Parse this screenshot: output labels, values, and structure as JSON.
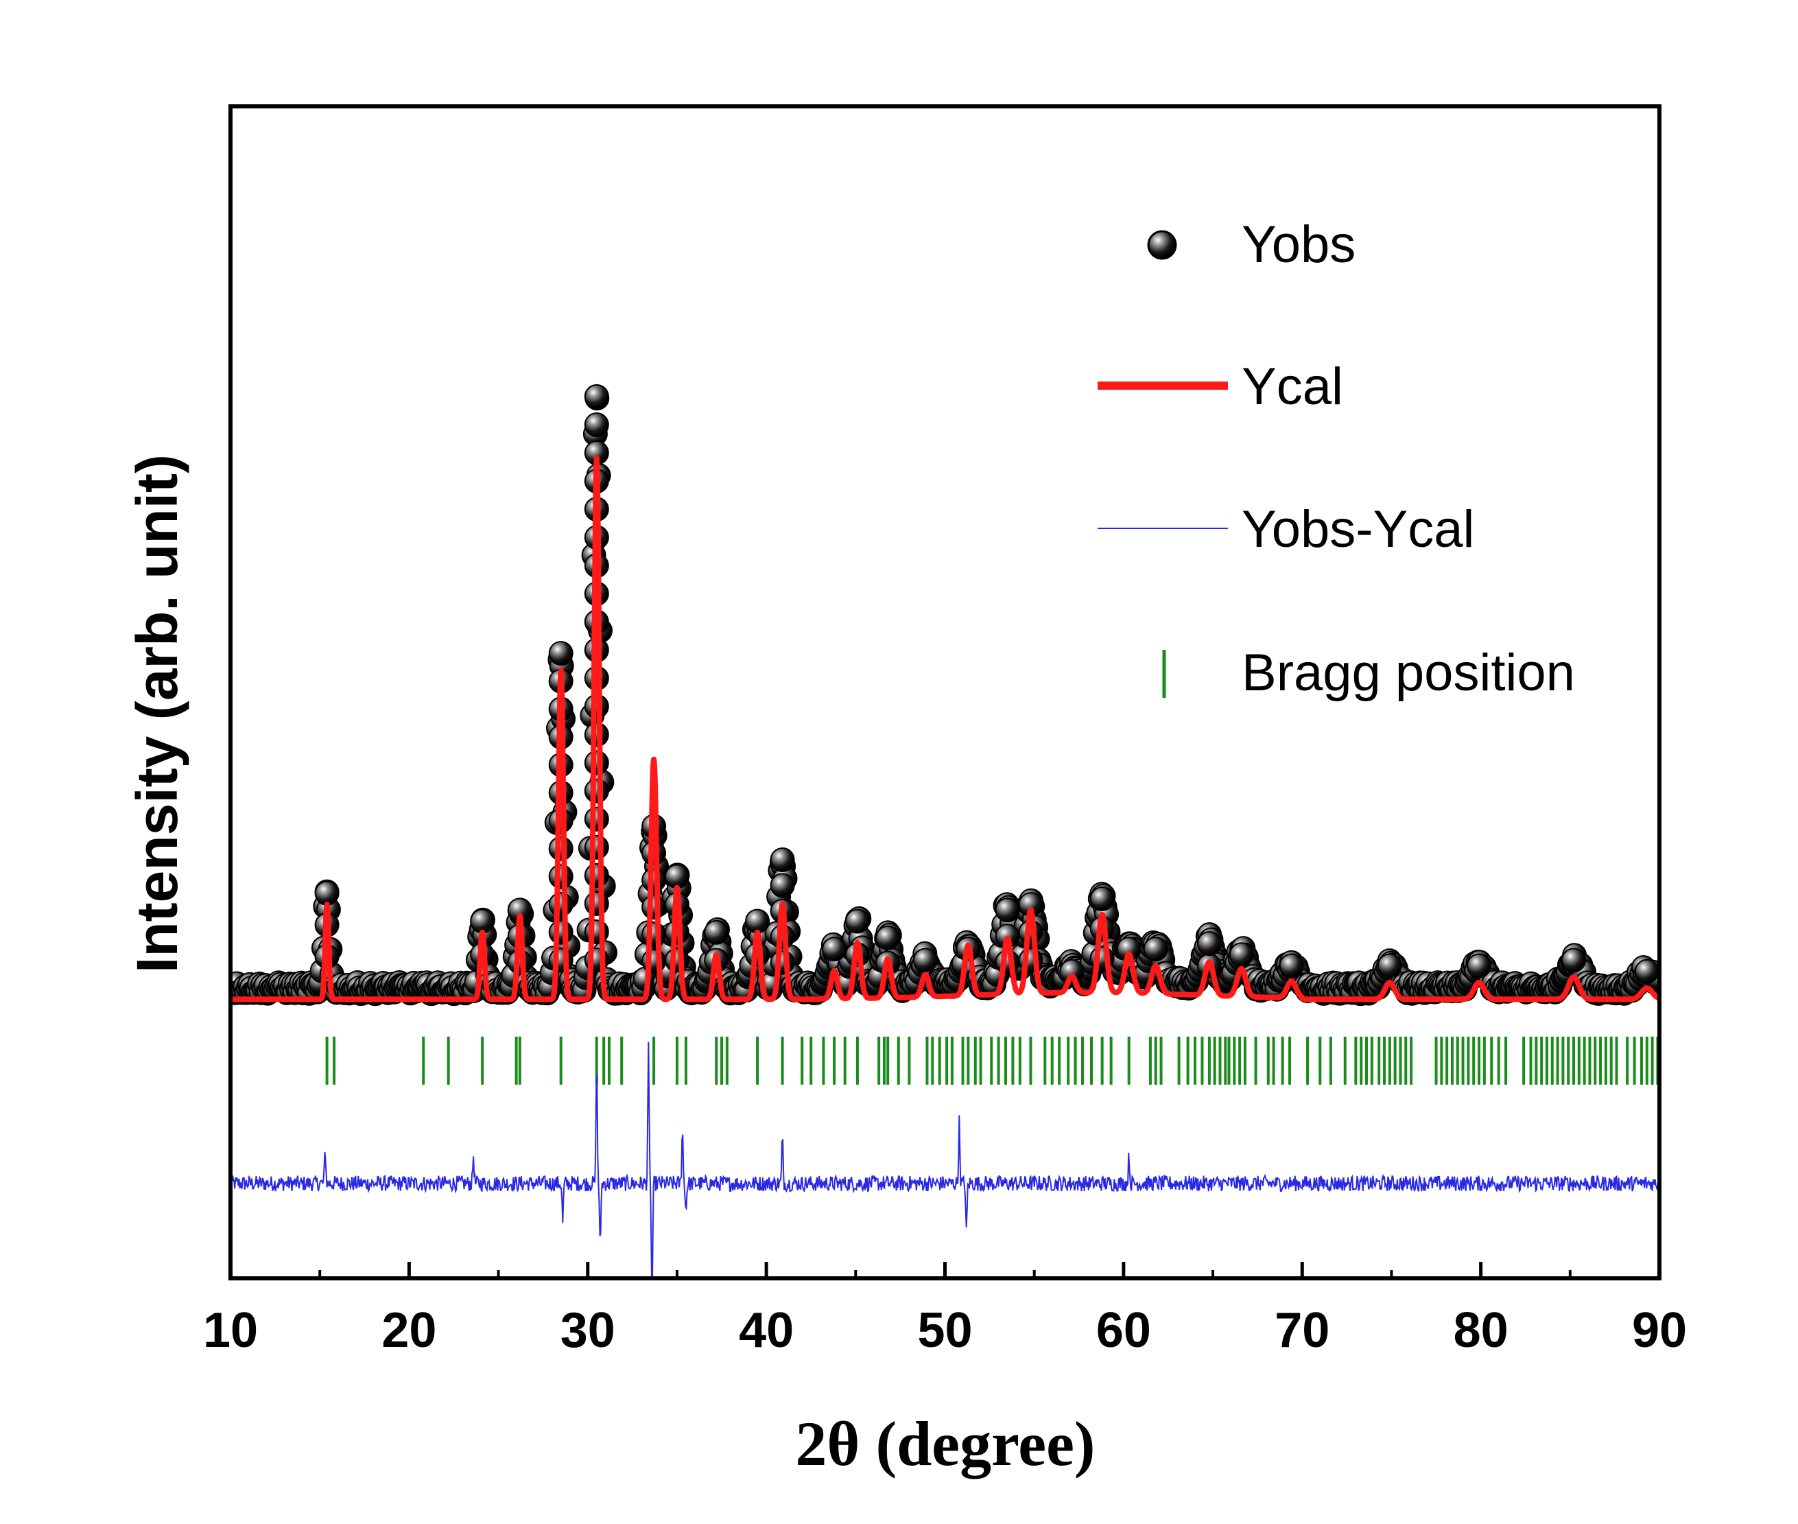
{
  "chart_data": {
    "type": "scatter",
    "title": "",
    "xlabel": "2θ (degree)",
    "ylabel": "Intensity (arb. unit)",
    "xlim": [
      10,
      90
    ],
    "ylim": [
      -0.5,
      1.6
    ],
    "xticks": [
      10,
      20,
      30,
      40,
      50,
      60,
      70,
      80,
      90
    ],
    "xtick_labels": [
      "10",
      "20",
      "30",
      "40",
      "50",
      "60",
      "70",
      "80",
      "90"
    ],
    "legend": {
      "placement": "top-right",
      "entries": [
        {
          "label": "Yobs",
          "marker": "sphere",
          "color": "#000000"
        },
        {
          "label": "Ycal",
          "marker": "line",
          "color": "#ff1a1a"
        },
        {
          "label": "Yobs-Ycal",
          "marker": "thin-line",
          "color": "#2a2ae6"
        },
        {
          "label": "Bragg position",
          "marker": "tick",
          "color": "#1a8c1a"
        }
      ]
    },
    "series": [
      {
        "name": "Yobs",
        "type": "scatter",
        "color": "#000000",
        "baseline": 0.02,
        "noise": 0.01
      },
      {
        "name": "Ycal",
        "type": "line",
        "color": "#ff1a1a",
        "baseline": 0.0
      },
      {
        "name": "Yobs-Ycal",
        "type": "line",
        "color": "#2a2ae6",
        "offset": -0.33
      },
      {
        "name": "Bragg position",
        "type": "ticks",
        "color": "#1a8c1a",
        "offset": -0.11
      }
    ],
    "peaks": [
      {
        "x": 15.4,
        "ycal": 0.17,
        "yobs": 0.17
      },
      {
        "x": 24.1,
        "ycal": 0.12,
        "yobs": 0.12
      },
      {
        "x": 26.2,
        "ycal": 0.15,
        "yobs": 0.14
      },
      {
        "x": 28.5,
        "ycal": 0.59,
        "yobs": 0.6
      },
      {
        "x": 30.5,
        "ycal": 0.97,
        "yobs": 1.06
      },
      {
        "x": 33.7,
        "ycal": 0.43,
        "yobs": 0.29
      },
      {
        "x": 35.0,
        "ycal": 0.2,
        "yobs": 0.2
      },
      {
        "x": 37.2,
        "ycal": 0.08,
        "yobs": 0.1
      },
      {
        "x": 39.5,
        "ycal": 0.12,
        "yobs": 0.12
      },
      {
        "x": 40.9,
        "ycal": 0.17,
        "yobs": 0.23
      },
      {
        "x": 43.8,
        "ycal": 0.05,
        "yobs": 0.07
      },
      {
        "x": 45.1,
        "ycal": 0.1,
        "yobs": 0.12
      },
      {
        "x": 46.8,
        "ycal": 0.07,
        "yobs": 0.09
      },
      {
        "x": 48.9,
        "ycal": 0.04,
        "yobs": 0.05
      },
      {
        "x": 51.3,
        "ycal": 0.09,
        "yobs": 0.07
      },
      {
        "x": 53.5,
        "ycal": 0.1,
        "yobs": 0.14
      },
      {
        "x": 54.8,
        "ycal": 0.15,
        "yobs": 0.15
      },
      {
        "x": 57.1,
        "ycal": 0.03,
        "yobs": 0.03
      },
      {
        "x": 58.8,
        "ycal": 0.14,
        "yobs": 0.16
      },
      {
        "x": 60.3,
        "ycal": 0.07,
        "yobs": 0.07
      },
      {
        "x": 61.8,
        "ycal": 0.05,
        "yobs": 0.07
      },
      {
        "x": 64.8,
        "ycal": 0.06,
        "yobs": 0.08
      },
      {
        "x": 66.6,
        "ycal": 0.05,
        "yobs": 0.06
      },
      {
        "x": 69.4,
        "ycal": 0.03,
        "yobs": 0.04
      },
      {
        "x": 74.9,
        "ycal": 0.03,
        "yobs": 0.04
      },
      {
        "x": 79.9,
        "ycal": 0.03,
        "yobs": 0.04
      },
      {
        "x": 85.2,
        "ycal": 0.04,
        "yobs": 0.05
      },
      {
        "x": 89.3,
        "ycal": 0.02,
        "yobs": 0.03
      }
    ],
    "bragg_positions": [
      15.4,
      15.8,
      20.8,
      22.2,
      24.1,
      26.0,
      26.2,
      28.5,
      30.5,
      30.9,
      31.2,
      31.9,
      33.7,
      35.0,
      35.5,
      37.2,
      37.5,
      37.8,
      39.5,
      40.9,
      42.0,
      42.5,
      43.2,
      43.8,
      44.4,
      45.1,
      46.3,
      46.6,
      46.8,
      47.4,
      48.0,
      49.0,
      49.3,
      49.7,
      50.1,
      50.4,
      51.0,
      51.3,
      51.7,
      52.0,
      52.6,
      53.0,
      53.4,
      53.8,
      54.2,
      54.8,
      55.6,
      56.0,
      56.4,
      56.9,
      57.3,
      57.7,
      58.2,
      58.8,
      59.3,
      60.3,
      61.5,
      61.8,
      62.1,
      63.1,
      63.6,
      64.0,
      64.4,
      64.8,
      65.1,
      65.4,
      65.7,
      65.9,
      66.2,
      66.5,
      66.8,
      67.4,
      68.1,
      68.4,
      68.9,
      69.3,
      70.3,
      71.0,
      71.6,
      72.4,
      73.0,
      73.3,
      73.6,
      73.9,
      74.3,
      74.6,
      74.9,
      75.2,
      75.5,
      75.8,
      76.1,
      77.5,
      77.8,
      78.1,
      78.4,
      78.7,
      79.0,
      79.3,
      79.6,
      79.9,
      80.2,
      80.6,
      81.0,
      81.4,
      82.4,
      82.8,
      83.1,
      83.4,
      83.7,
      84.0,
      84.3,
      84.6,
      84.9,
      85.2,
      85.5,
      85.8,
      86.1,
      86.4,
      86.7,
      87.0,
      87.3,
      87.6,
      88.2,
      88.6,
      89.0,
      89.3,
      89.6,
      89.9
    ],
    "difference_spikes": [
      {
        "x": 15.3,
        "y": 0.06
      },
      {
        "x": 23.6,
        "y": 0.05
      },
      {
        "x": 28.6,
        "y": -0.07
      },
      {
        "x": 30.5,
        "y": 0.22
      },
      {
        "x": 30.7,
        "y": -0.12
      },
      {
        "x": 33.4,
        "y": 0.24
      },
      {
        "x": 33.6,
        "y": -0.22
      },
      {
        "x": 35.3,
        "y": 0.1
      },
      {
        "x": 35.5,
        "y": -0.05
      },
      {
        "x": 40.9,
        "y": 0.08
      },
      {
        "x": 50.8,
        "y": 0.11
      },
      {
        "x": 51.2,
        "y": -0.09
      },
      {
        "x": 60.3,
        "y": 0.05
      }
    ]
  }
}
